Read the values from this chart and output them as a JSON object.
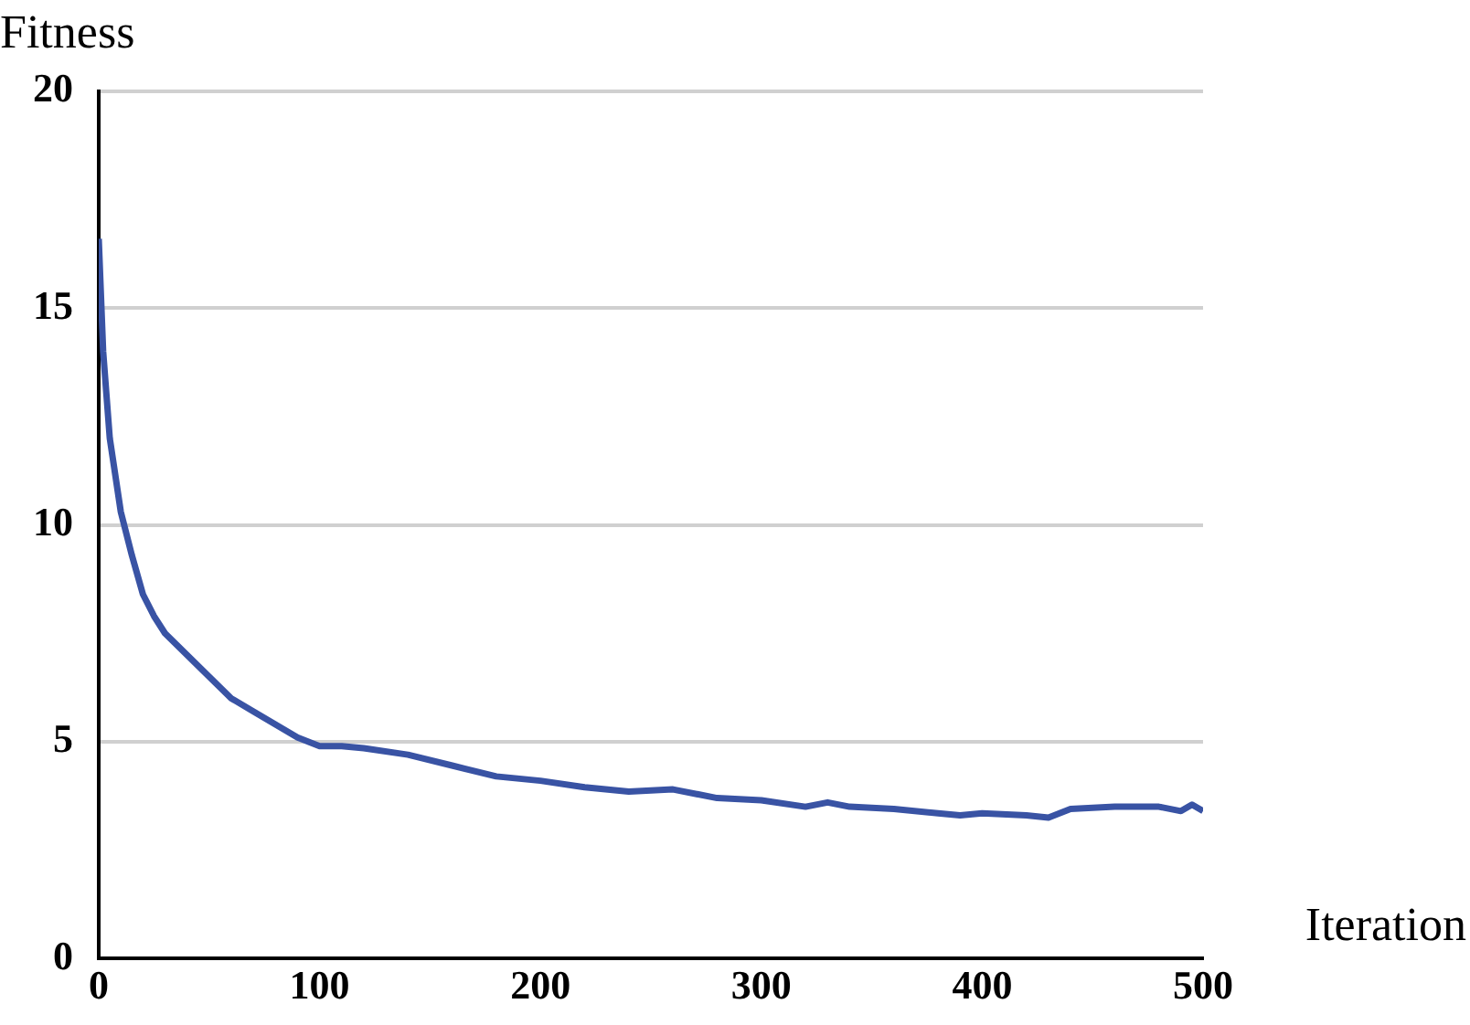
{
  "chart_data": {
    "type": "line",
    "xlabel": "Iteration",
    "ylabel": "Fitness",
    "x": [
      0,
      2,
      5,
      10,
      15,
      20,
      25,
      30,
      40,
      50,
      60,
      70,
      80,
      90,
      100,
      110,
      120,
      140,
      160,
      180,
      200,
      220,
      240,
      260,
      280,
      300,
      320,
      330,
      340,
      360,
      380,
      390,
      400,
      420,
      430,
      440,
      460,
      480,
      490,
      495,
      500
    ],
    "series": [
      {
        "color": "#3953a4",
        "values": [
          16.6,
          14,
          12,
          10.3,
          9.3,
          8.4,
          7.9,
          7.5,
          7.0,
          6.5,
          6.0,
          5.7,
          5.4,
          5.1,
          4.9,
          4.9,
          4.85,
          4.7,
          4.45,
          4.2,
          4.1,
          3.95,
          3.85,
          3.9,
          3.7,
          3.65,
          3.5,
          3.6,
          3.5,
          3.45,
          3.35,
          3.3,
          3.35,
          3.3,
          3.25,
          3.45,
          3.5,
          3.5,
          3.4,
          3.55,
          3.4
        ]
      }
    ],
    "xlim": [
      0,
      500
    ],
    "xticks": [
      0,
      100,
      200,
      300,
      400,
      500
    ],
    "ylim": [
      0,
      20
    ],
    "yticks": [
      0,
      5,
      10,
      15,
      20
    ],
    "grid": "y",
    "legend": false,
    "marker": "none",
    "line_style": "solid"
  }
}
